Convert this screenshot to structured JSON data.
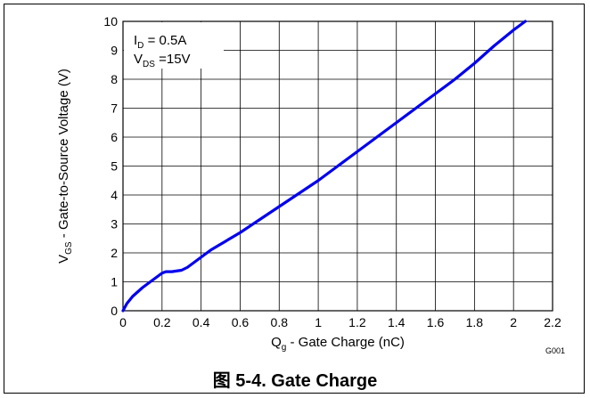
{
  "chart_data": {
    "type": "line",
    "xlabel_main": "Q",
    "xlabel_sub": "g",
    "xlabel_rest": " - Gate Charge  (nC)",
    "ylabel_main": "V",
    "ylabel_sub": "GS",
    "ylabel_rest": " - Gate-to-Source Voltage (V)",
    "xlim": [
      0,
      2.2
    ],
    "ylim": [
      0,
      10
    ],
    "x_ticks": [
      "0",
      "0.2",
      "0.4",
      "0.6",
      "0.8",
      "1",
      "1.2",
      "1.4",
      "1.6",
      "1.8",
      "2",
      "2.2"
    ],
    "y_ticks": [
      "0",
      "1",
      "2",
      "3",
      "4",
      "5",
      "6",
      "7",
      "8",
      "9",
      "10"
    ],
    "grid": true,
    "series": [
      {
        "color": "#0000ee",
        "x": [
          0,
          0.02,
          0.05,
          0.1,
          0.15,
          0.2,
          0.22,
          0.25,
          0.3,
          0.33,
          0.36,
          0.4,
          0.45,
          0.5,
          0.6,
          0.7,
          0.8,
          0.9,
          1.0,
          1.1,
          1.2,
          1.3,
          1.4,
          1.5,
          1.6,
          1.7,
          1.8,
          1.9,
          2.0,
          2.06
        ],
        "y": [
          0,
          0.25,
          0.5,
          0.8,
          1.05,
          1.3,
          1.35,
          1.35,
          1.4,
          1.5,
          1.65,
          1.85,
          2.1,
          2.3,
          2.7,
          3.15,
          3.6,
          4.05,
          4.5,
          5.0,
          5.5,
          6.0,
          6.5,
          7.0,
          7.5,
          8.0,
          8.55,
          9.15,
          9.7,
          10.0
        ]
      }
    ],
    "annotation": {
      "line1_main": "I",
      "line1_sub": "D",
      "line1_rest": " = 0.5A",
      "line2_main": "V",
      "line2_sub": "DS",
      "line2_rest": " =15V"
    },
    "figure_code": "G001"
  },
  "caption": "图 5-4. Gate Charge"
}
